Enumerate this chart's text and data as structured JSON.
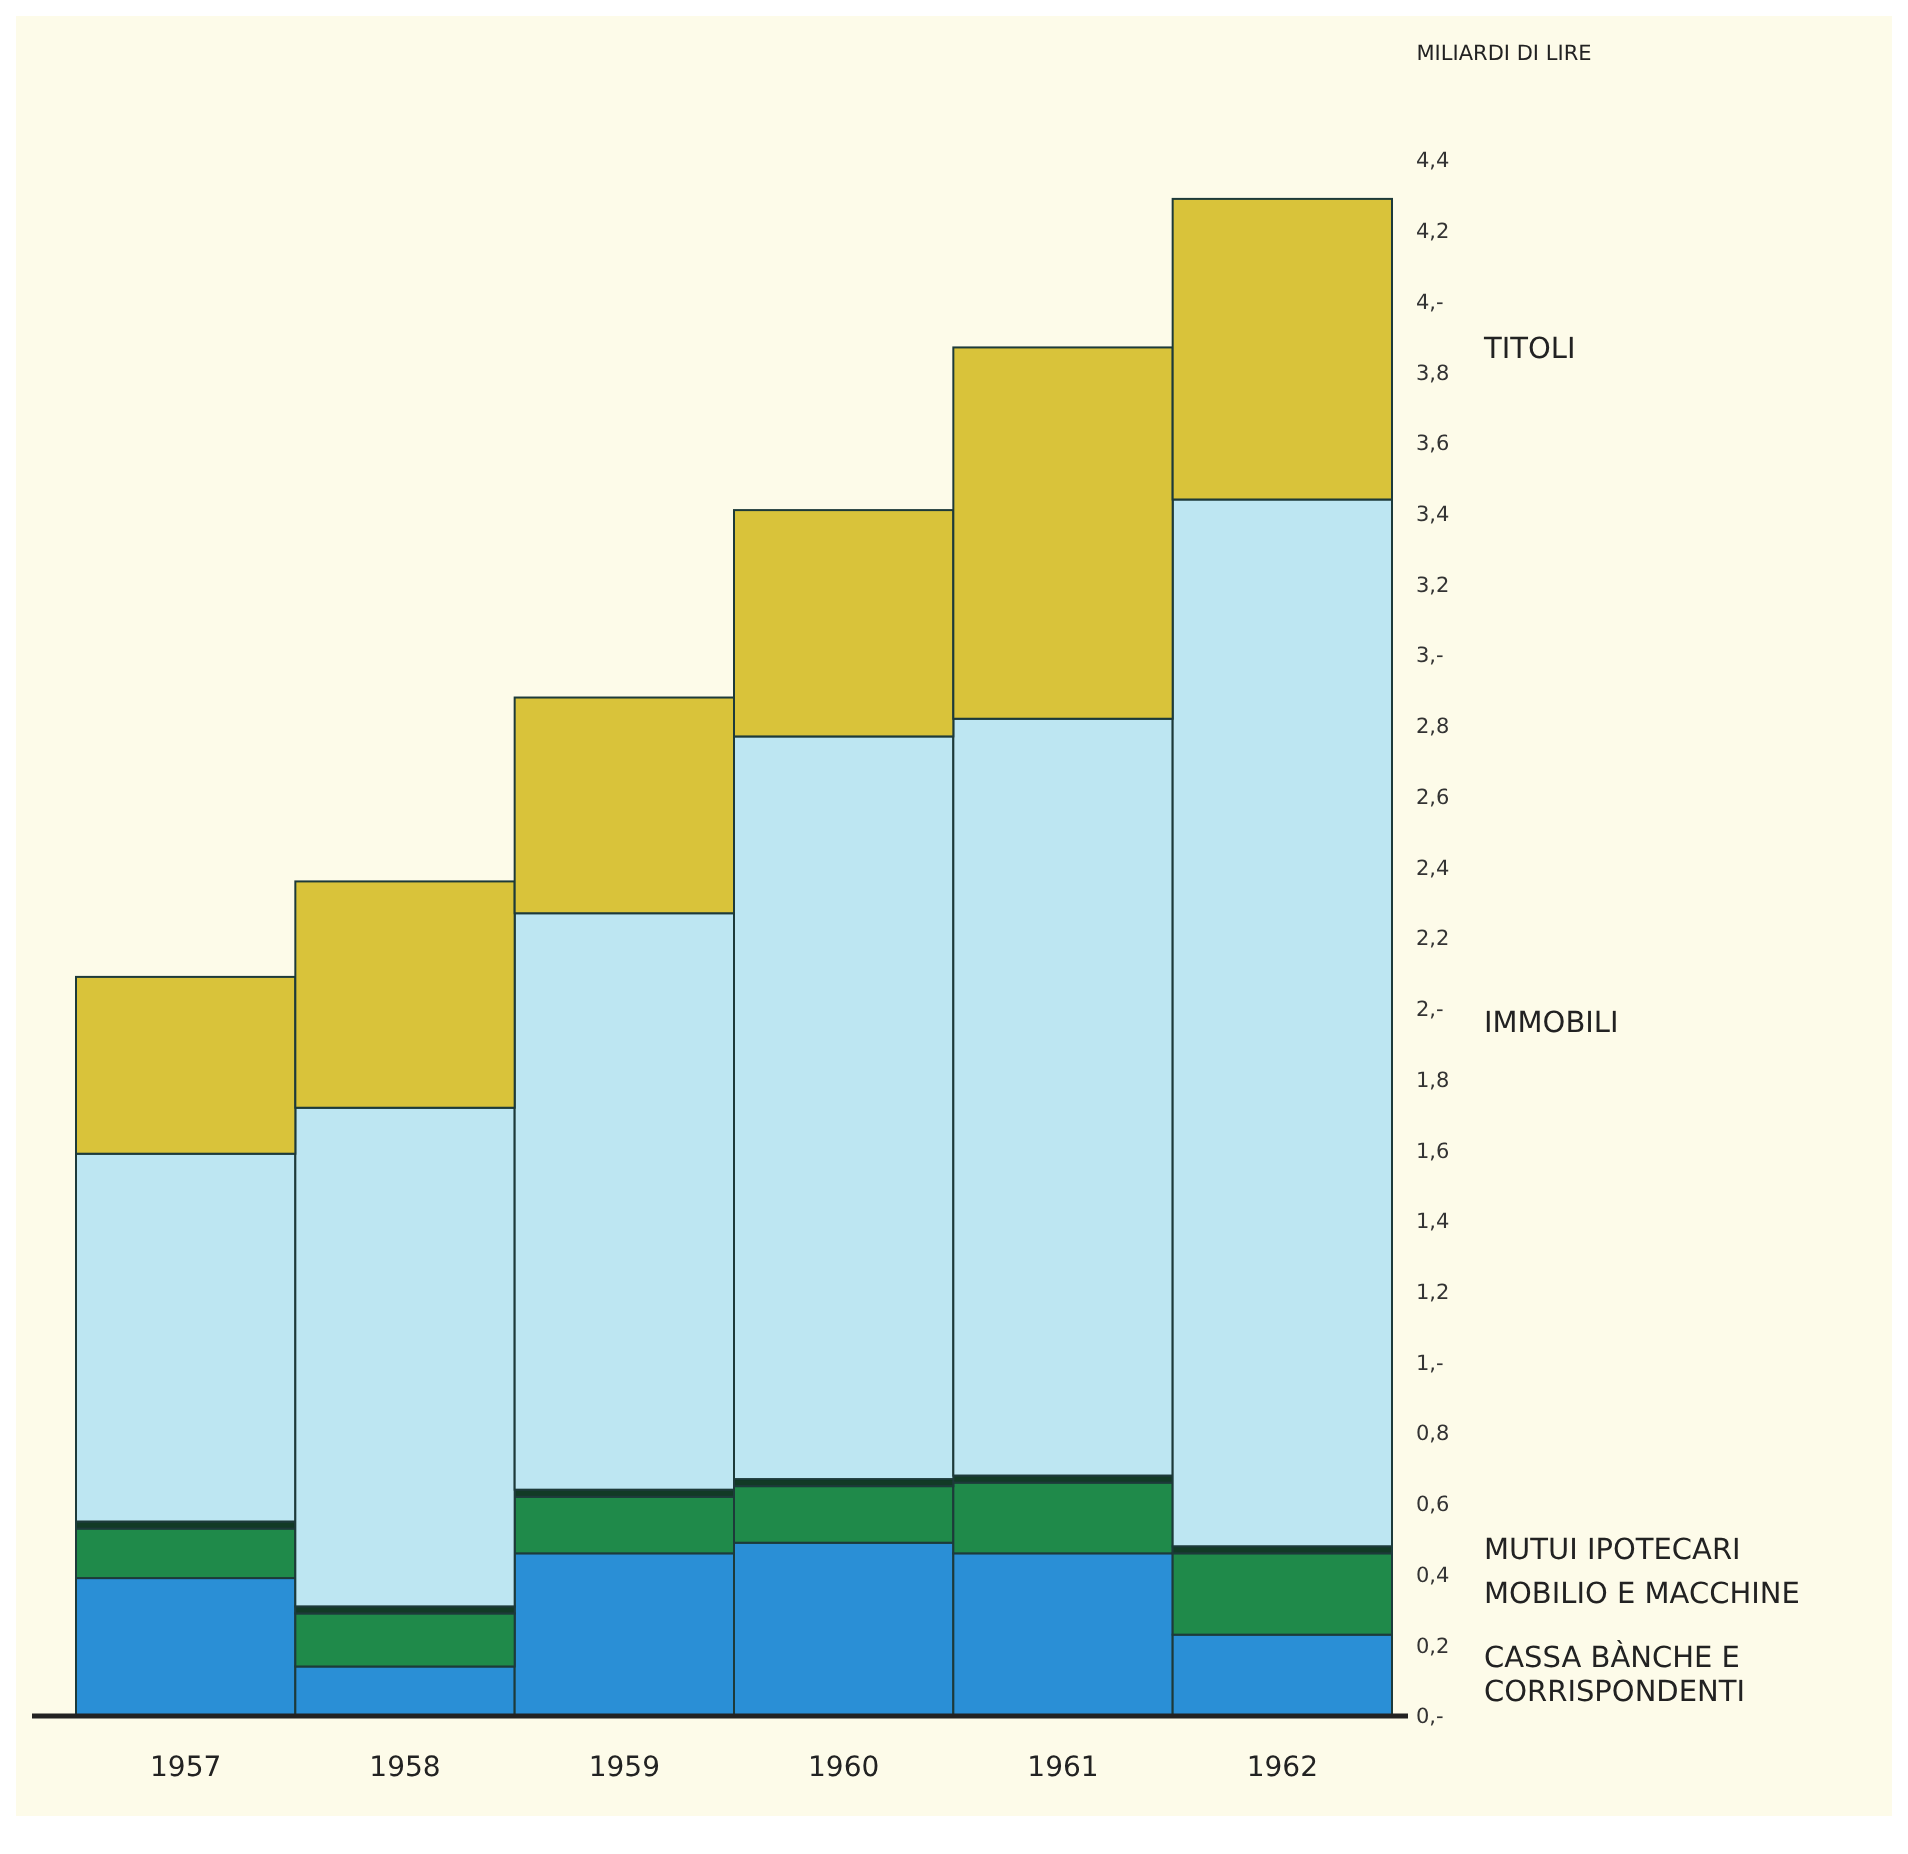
{
  "chart_data": {
    "type": "bar",
    "stacked": true,
    "ylabel": "MILIARDI DI LIRE",
    "legend": "right",
    "categories": [
      "1957",
      "1958",
      "1959",
      "1960",
      "1961",
      "1962"
    ],
    "series": [
      {
        "name": "CASSA BÀNCHE E CORRISPONDENTI",
        "color": "#2a8fd6",
        "values": [
          0.39,
          0.14,
          0.46,
          0.49,
          0.46,
          0.23
        ]
      },
      {
        "name": "MOBILIO E MACCHINE",
        "color": "#1f8a4a",
        "values": [
          0.14,
          0.15,
          0.16,
          0.16,
          0.2,
          0.23
        ]
      },
      {
        "name": "MUTUI IPOTECARI",
        "color": "#123a26",
        "values": [
          0.02,
          0.02,
          0.02,
          0.02,
          0.02,
          0.02
        ]
      },
      {
        "name": "IMMOBILI",
        "color": "#bde6f2",
        "values": [
          1.04,
          1.41,
          1.63,
          2.1,
          2.14,
          2.96
        ]
      },
      {
        "name": "TITOLI",
        "color": "#d9c33a",
        "values": [
          0.5,
          0.64,
          0.61,
          0.64,
          1.05,
          0.85
        ]
      }
    ],
    "ylim": [
      0,
      4.4
    ],
    "yticks": [
      {
        "value": 0,
        "label": "0,-"
      },
      {
        "value": 0.2,
        "label": "0,2"
      },
      {
        "value": 0.4,
        "label": "0,4"
      },
      {
        "value": 0.6,
        "label": "0,6"
      },
      {
        "value": 0.8,
        "label": "0,8"
      },
      {
        "value": 1,
        "label": "1,-"
      },
      {
        "value": 1.2,
        "label": "1,2"
      },
      {
        "value": 1.4,
        "label": "1,4"
      },
      {
        "value": 1.6,
        "label": "1,6"
      },
      {
        "value": 1.8,
        "label": "1,8"
      },
      {
        "value": 2,
        "label": "2,-"
      },
      {
        "value": 2.2,
        "label": "2,2"
      },
      {
        "value": 2.4,
        "label": "2,4"
      },
      {
        "value": 2.6,
        "label": "2,6"
      },
      {
        "value": 2.8,
        "label": "2,8"
      },
      {
        "value": 3,
        "label": "3,-"
      },
      {
        "value": 3.2,
        "label": "3,2"
      },
      {
        "value": 3.4,
        "label": "3,4"
      },
      {
        "value": 3.6,
        "label": "3,6"
      },
      {
        "value": 3.8,
        "label": "3,8"
      },
      {
        "value": 4,
        "label": "4,-"
      },
      {
        "value": 4.2,
        "label": "4,2"
      },
      {
        "value": 4.4,
        "label": "4,4"
      }
    ]
  }
}
